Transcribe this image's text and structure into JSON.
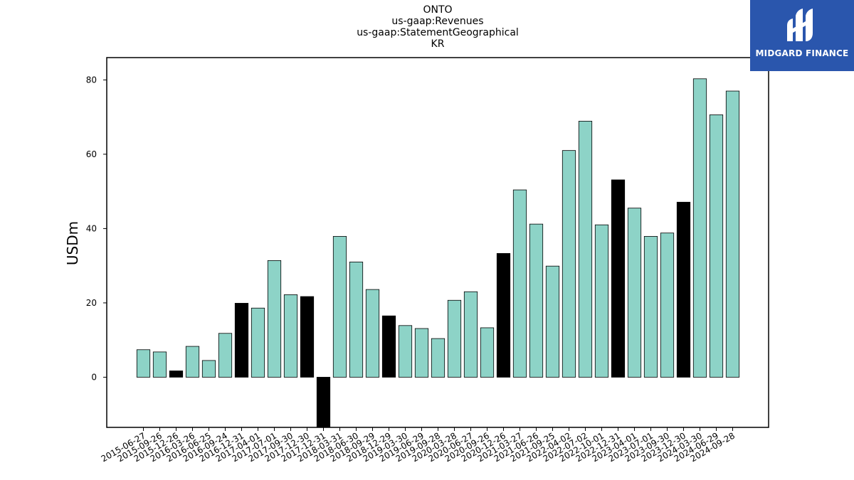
{
  "title_lines": [
    "ONTO",
    "us-gaap:Revenues",
    "us-gaap:StatementGeographical",
    "KR"
  ],
  "brand": {
    "name": "MIDGARD FINANCE",
    "color": "#2a56ad"
  },
  "colors": {
    "normal": "#8dd3c7",
    "highlight": "#000000",
    "outline": "#000000"
  },
  "chart_data": {
    "type": "bar",
    "title": "ONTO us-gaap:Revenues us-gaap:StatementGeographical KR",
    "xlabel": "",
    "ylabel": "USDm",
    "ylim": [
      -13.5,
      86
    ],
    "yticks": [
      0,
      20,
      40,
      60,
      80
    ],
    "grid": false,
    "categories": [
      "2015-06-27",
      "2015-09-26",
      "2015-12-26",
      "2016-03-26",
      "2016-06-25",
      "2016-09-24",
      "2016-12-31",
      "2017-04-01",
      "2017-07-01",
      "2017-09-30",
      "2017-12-30",
      "2017-12-31",
      "2018-03-31",
      "2018-06-30",
      "2018-09-29",
      "2018-12-29",
      "2019-03-30",
      "2019-06-29",
      "2019-09-28",
      "2020-03-28",
      "2020-06-27",
      "2020-09-26",
      "2020-12-26",
      "2021-03-27",
      "2021-06-26",
      "2021-09-25",
      "2022-04-02",
      "2022-07-02",
      "2022-10-01",
      "2022-12-31",
      "2023-04-01",
      "2023-07-01",
      "2023-09-30",
      "2023-12-30",
      "2024-03-30",
      "2024-06-29",
      "2024-09-28"
    ],
    "values": [
      7.4,
      6.8,
      1.7,
      8.3,
      4.5,
      11.8,
      19.9,
      18.6,
      31.4,
      22.2,
      21.7,
      -13.5,
      37.9,
      31.0,
      23.6,
      16.5,
      13.9,
      13.1,
      10.4,
      20.7,
      23.0,
      13.3,
      33.3,
      50.4,
      41.2,
      29.9,
      61.0,
      68.9,
      41.0,
      53.1,
      45.5,
      37.9,
      38.8,
      47.1,
      80.3,
      70.6,
      77.0
    ],
    "highlight": [
      false,
      false,
      true,
      false,
      false,
      false,
      true,
      false,
      false,
      false,
      true,
      true,
      false,
      false,
      false,
      true,
      false,
      false,
      false,
      false,
      false,
      false,
      true,
      false,
      false,
      false,
      false,
      false,
      false,
      true,
      false,
      false,
      false,
      true,
      false,
      false,
      false
    ]
  }
}
